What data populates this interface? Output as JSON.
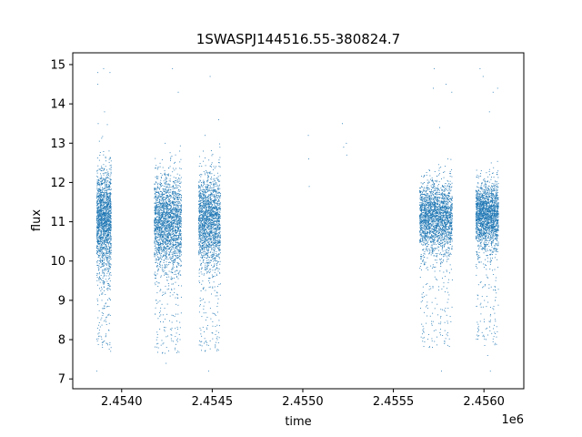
{
  "chart_data": {
    "type": "scatter",
    "title": "1SWASPJ144516.55-380824.7",
    "xlabel": "time",
    "ylabel": "flux",
    "x_offset_label": "1e6",
    "xlim": [
      2453730,
      2456220
    ],
    "ylim": [
      6.75,
      15.3
    ],
    "x_ticks": [
      2.454,
      2.4545,
      2.455,
      2.4555,
      2.456
    ],
    "x_tick_labels": [
      "2.4540",
      "2.4545",
      "2.4550",
      "2.4555",
      "2.4560"
    ],
    "y_ticks": [
      7,
      8,
      9,
      10,
      11,
      12,
      13,
      14,
      15
    ],
    "y_tick_labels": [
      "7",
      "8",
      "9",
      "10",
      "11",
      "12",
      "13",
      "14",
      "15"
    ],
    "grid": false,
    "marker_color": "#1f77b4",
    "series": [
      {
        "values": [
          [
            2453868,
            14.8
          ],
          [
            2453868,
            14.5
          ],
          [
            2453870,
            13.5
          ],
          [
            2453872,
            12.0
          ],
          [
            2453875,
            11.0
          ],
          [
            2453878,
            10.5
          ],
          [
            2453880,
            10.0
          ],
          [
            2453885,
            11.2
          ],
          [
            2453890,
            12.3
          ],
          [
            2453895,
            9.5
          ],
          [
            2453898,
            10.8
          ],
          [
            2453905,
            13.8
          ],
          [
            2453910,
            8.5
          ],
          [
            2453915,
            11.5
          ],
          [
            2453920,
            7.9
          ],
          [
            2453925,
            9.8
          ],
          [
            2453935,
            14.8
          ],
          [
            2453938,
            11.0
          ],
          [
            2453862,
            7.2
          ],
          [
            2453900,
            14.9
          ],
          [
            2454185,
            10.5
          ],
          [
            2454190,
            9.0
          ],
          [
            2454200,
            12.1
          ],
          [
            2454210,
            8.6
          ],
          [
            2454220,
            11.2
          ],
          [
            2454230,
            10.9
          ],
          [
            2454240,
            13.0
          ],
          [
            2454245,
            7.4
          ],
          [
            2454250,
            11.8
          ],
          [
            2454260,
            9.6
          ],
          [
            2454270,
            12.6
          ],
          [
            2454280,
            14.9
          ],
          [
            2454290,
            10.2
          ],
          [
            2454300,
            8.9
          ],
          [
            2454310,
            11.5
          ],
          [
            2454312,
            14.3
          ],
          [
            2454320,
            12.8
          ],
          [
            2454430,
            9.8
          ],
          [
            2454440,
            11.0
          ],
          [
            2454450,
            12.8
          ],
          [
            2454455,
            8.2
          ],
          [
            2454460,
            13.2
          ],
          [
            2454470,
            10.6
          ],
          [
            2454480,
            7.2
          ],
          [
            2454488,
            14.7
          ],
          [
            2454495,
            12.4
          ],
          [
            2454510,
            11.8
          ],
          [
            2454520,
            10.0
          ],
          [
            2454535,
            13.6
          ],
          [
            2454542,
            12.9
          ],
          [
            2455030,
            13.2
          ],
          [
            2455032,
            12.6
          ],
          [
            2455035,
            11.9
          ],
          [
            2455218,
            13.5
          ],
          [
            2455225,
            12.9
          ],
          [
            2455240,
            13.0
          ],
          [
            2455242,
            12.7
          ],
          [
            2455650,
            10.5
          ],
          [
            2455665,
            9.2
          ],
          [
            2455680,
            11.8
          ],
          [
            2455690,
            8.8
          ],
          [
            2455700,
            12.3
          ],
          [
            2455710,
            11.1
          ],
          [
            2455720,
            14.4
          ],
          [
            2455725,
            14.9
          ],
          [
            2455740,
            10.9
          ],
          [
            2455755,
            13.4
          ],
          [
            2455765,
            7.2
          ],
          [
            2455780,
            11.6
          ],
          [
            2455790,
            14.5
          ],
          [
            2455800,
            12.6
          ],
          [
            2455810,
            9.7
          ],
          [
            2455815,
            11.3
          ],
          [
            2455822,
            14.3
          ],
          [
            2455960,
            10.8
          ],
          [
            2455970,
            9.4
          ],
          [
            2455978,
            14.9
          ],
          [
            2455985,
            12.3
          ],
          [
            2455995,
            14.7
          ],
          [
            2456005,
            11.1
          ],
          [
            2456020,
            7.6
          ],
          [
            2456030,
            13.8
          ],
          [
            2456035,
            7.2
          ],
          [
            2456040,
            12.5
          ],
          [
            2456050,
            14.3
          ],
          [
            2456055,
            10.3
          ],
          [
            2456062,
            9.0
          ],
          [
            2456070,
            11.7
          ],
          [
            2456075,
            14.4
          ]
        ]
      }
    ],
    "dense_clusters": [
      {
        "x_range": [
          2453862,
          2453942
        ],
        "y_mean": 11.0,
        "y_sd": 0.65,
        "n": 1800
      },
      {
        "x_range": [
          2454180,
          2454330
        ],
        "y_mean": 10.95,
        "y_sd": 0.6,
        "n": 2200
      },
      {
        "x_range": [
          2454425,
          2454545
        ],
        "y_mean": 11.0,
        "y_sd": 0.6,
        "n": 1900
      },
      {
        "x_range": [
          2455645,
          2455825
        ],
        "y_mean": 11.1,
        "y_sd": 0.45,
        "n": 2300
      },
      {
        "x_range": [
          2455955,
          2456080
        ],
        "y_mean": 11.15,
        "y_sd": 0.42,
        "n": 2000
      }
    ]
  }
}
